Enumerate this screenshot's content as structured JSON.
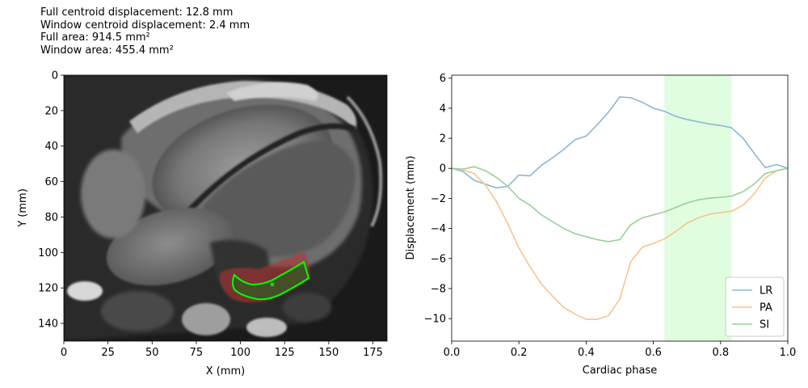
{
  "info": {
    "full_centroid": "Full centroid displacement: 12.8 mm",
    "window_centroid": "Window centroid displacement: 2.4 mm",
    "full_area": "Full area: 914.5 mm²",
    "window_area": "Window area: 455.4 mm²"
  },
  "chart_data": [
    {
      "type": "image",
      "description_free": true,
      "xlabel": "X (mm)",
      "ylabel": "Y (mm)",
      "xlim": [
        0,
        183
      ],
      "ylim": [
        150,
        0
      ],
      "xticks": [
        0,
        25,
        50,
        75,
        100,
        125,
        150,
        175
      ],
      "yticks": [
        0,
        20,
        40,
        60,
        80,
        100,
        120,
        140
      ],
      "contour_color": "#00ff00",
      "region_color": "#b03030",
      "centroid": [
        118,
        118
      ]
    },
    {
      "type": "line",
      "xlabel": "Cardiac phase",
      "ylabel": "Displacement (mm)",
      "xlim": [
        0,
        1
      ],
      "ylim": [
        -11.5,
        6.2
      ],
      "xticks": [
        0.0,
        0.2,
        0.4,
        0.6,
        0.8,
        1.0
      ],
      "xtick_labels": [
        "0.0",
        "0.2",
        "0.4",
        "0.6",
        "0.8",
        "1.0"
      ],
      "yticks": [
        -10,
        -8,
        -6,
        -4,
        -2,
        0,
        2,
        4,
        6
      ],
      "window": [
        0.633,
        0.833
      ],
      "window_color": "#e0fde0",
      "legend_position": "lower-right",
      "x": [
        0.0,
        0.033,
        0.067,
        0.1,
        0.133,
        0.167,
        0.2,
        0.233,
        0.267,
        0.3,
        0.333,
        0.367,
        0.4,
        0.433,
        0.467,
        0.5,
        0.533,
        0.567,
        0.6,
        0.633,
        0.667,
        0.7,
        0.733,
        0.767,
        0.8,
        0.833,
        0.867,
        0.9,
        0.933,
        0.967,
        1.0
      ],
      "series": [
        {
          "name": "LR",
          "color": "#8bb6d6",
          "values": [
            0.0,
            -0.2,
            -0.8,
            -1.05,
            -1.3,
            -1.2,
            -0.45,
            -0.5,
            0.2,
            0.7,
            1.25,
            1.9,
            2.15,
            2.9,
            3.75,
            4.75,
            4.7,
            4.4,
            4.0,
            3.8,
            3.45,
            3.25,
            3.1,
            2.95,
            2.85,
            2.7,
            2.0,
            1.0,
            0.05,
            0.25,
            0.0
          ]
        },
        {
          "name": "PA",
          "color": "#f8c48c",
          "values": [
            0.0,
            -0.1,
            -0.35,
            -1.1,
            -2.2,
            -3.7,
            -5.3,
            -6.55,
            -7.7,
            -8.5,
            -9.25,
            -9.7,
            -10.05,
            -10.05,
            -9.8,
            -8.7,
            -6.2,
            -5.25,
            -5.0,
            -4.7,
            -4.2,
            -3.65,
            -3.3,
            -3.05,
            -2.95,
            -2.85,
            -2.45,
            -1.7,
            -0.65,
            -0.15,
            0.0
          ]
        },
        {
          "name": "SI",
          "color": "#98d098",
          "values": [
            0.0,
            -0.05,
            0.1,
            -0.15,
            -0.6,
            -1.2,
            -2.0,
            -2.45,
            -3.1,
            -3.55,
            -4.0,
            -4.35,
            -4.55,
            -4.75,
            -4.88,
            -4.75,
            -3.75,
            -3.3,
            -3.1,
            -2.9,
            -2.6,
            -2.3,
            -2.1,
            -1.98,
            -1.93,
            -1.85,
            -1.55,
            -1.05,
            -0.35,
            -0.15,
            0.0
          ]
        }
      ]
    }
  ]
}
